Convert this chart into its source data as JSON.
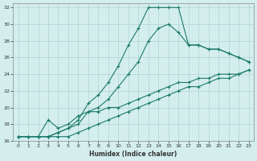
{
  "xlabel": "Humidex (Indice chaleur)",
  "background_color": "#d4eeee",
  "grid_color": "#afd4d4",
  "line_color": "#1a7a6a",
  "xlim": [
    -0.5,
    23.5
  ],
  "ylim": [
    16,
    32.5
  ],
  "xticks": [
    0,
    1,
    2,
    3,
    4,
    5,
    6,
    7,
    8,
    9,
    10,
    11,
    12,
    13,
    14,
    15,
    16,
    17,
    18,
    19,
    20,
    21,
    22,
    23
  ],
  "yticks": [
    16,
    18,
    20,
    22,
    24,
    26,
    28,
    30,
    32
  ],
  "series": [
    {
      "x": [
        0,
        1,
        2,
        3,
        4,
        5,
        6,
        7,
        8,
        9,
        10,
        11,
        12,
        13,
        14,
        15,
        16,
        17,
        18,
        19,
        20,
        21,
        22,
        23
      ],
      "y": [
        16.5,
        16.5,
        16.5,
        16.5,
        17.0,
        17.5,
        18.5,
        20.5,
        21.5,
        23.0,
        25.0,
        27.5,
        29.5,
        32.0,
        32.0,
        32.0,
        32.0,
        27.5,
        27.5,
        27.0,
        27.0,
        26.5,
        26.0,
        25.5
      ]
    },
    {
      "x": [
        0,
        1,
        2,
        3,
        4,
        5,
        6,
        7,
        8,
        9,
        10,
        11,
        12,
        13,
        14,
        15,
        16,
        17,
        18,
        19,
        20,
        21,
        22,
        23
      ],
      "y": [
        16.5,
        16.5,
        16.5,
        16.5,
        17.0,
        17.5,
        18.0,
        19.5,
        20.0,
        21.0,
        22.5,
        24.0,
        25.5,
        28.0,
        29.5,
        30.0,
        29.0,
        27.5,
        27.5,
        27.0,
        27.0,
        26.5,
        26.0,
        25.5
      ]
    },
    {
      "x": [
        0,
        1,
        2,
        3,
        4,
        5,
        6,
        7,
        8,
        9,
        10,
        11,
        12,
        13,
        14,
        15,
        16,
        17,
        18,
        19,
        20,
        21,
        22,
        23
      ],
      "y": [
        16.5,
        16.5,
        16.5,
        18.5,
        17.5,
        18.0,
        19.0,
        19.5,
        19.5,
        20.0,
        20.0,
        20.5,
        21.0,
        21.5,
        22.0,
        22.5,
        23.0,
        23.0,
        23.5,
        23.5,
        24.0,
        24.0,
        24.0,
        24.5
      ]
    },
    {
      "x": [
        0,
        1,
        2,
        3,
        4,
        5,
        6,
        7,
        8,
        9,
        10,
        11,
        12,
        13,
        14,
        15,
        16,
        17,
        18,
        19,
        20,
        21,
        22,
        23
      ],
      "y": [
        16.5,
        16.5,
        16.5,
        16.5,
        16.5,
        16.5,
        17.0,
        17.5,
        18.0,
        18.5,
        19.0,
        19.5,
        20.0,
        20.5,
        21.0,
        21.5,
        22.0,
        22.5,
        22.5,
        23.0,
        23.5,
        23.5,
        24.0,
        24.5
      ]
    }
  ]
}
